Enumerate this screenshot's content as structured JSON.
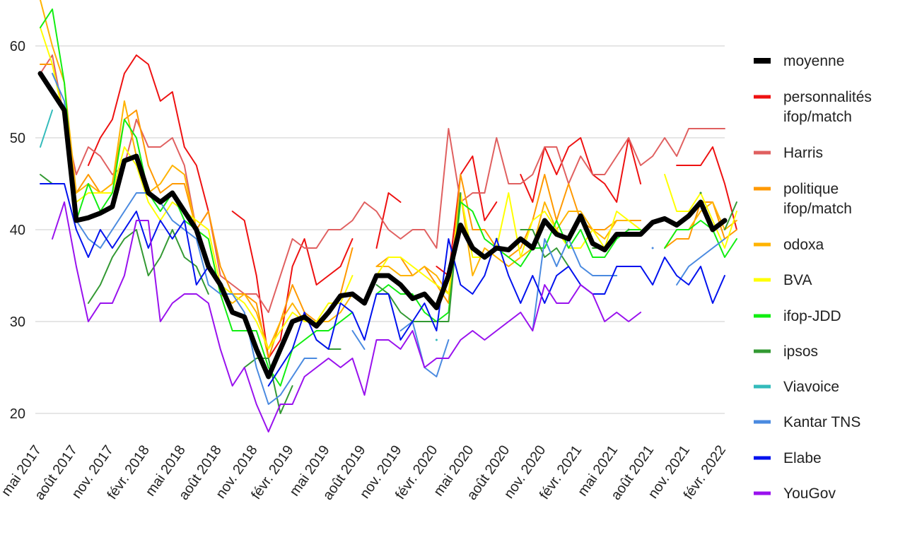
{
  "chart_data": {
    "type": "line",
    "title": "",
    "xlabel": "",
    "ylabel": "",
    "ylim": [
      17,
      65
    ],
    "yticks": [
      20,
      30,
      40,
      50,
      60
    ],
    "grid": "horizontal",
    "legend_position": "right",
    "x_tick_labels": [
      "mai 2017",
      "août 2017",
      "nov. 2017",
      "févr. 2018",
      "mai 2018",
      "août 2018",
      "nov. 2018",
      "févr. 2019",
      "mai 2019",
      "août 2019",
      "nov. 2019",
      "févr. 2020",
      "mai 2020",
      "août 2020",
      "nov. 2020",
      "févr. 2021",
      "mai 2021",
      "août 2021",
      "nov. 2021",
      "févr. 2022"
    ],
    "x_start_month": "2017-05",
    "series": [
      {
        "name": "personnalités\nifop/match",
        "color": "#ee1111",
        "width": 2,
        "values": [
          null,
          null,
          null,
          null,
          47,
          50,
          52,
          57,
          59,
          58,
          54,
          55,
          49,
          47,
          42,
          null,
          42,
          41,
          35,
          26,
          28,
          36,
          39,
          34,
          35,
          36,
          39,
          null,
          38,
          44,
          43,
          null,
          null,
          36,
          35,
          46,
          48,
          41,
          43,
          null,
          46,
          43,
          49,
          46,
          49,
          50,
          46,
          45,
          43,
          50,
          45,
          null,
          null,
          47,
          47,
          47,
          49,
          45,
          40
        ]
      },
      {
        "name": "Harris",
        "color": "#e06060",
        "width": 2,
        "values": [
          57,
          59,
          52,
          46,
          49,
          48,
          46,
          47,
          52,
          49,
          49,
          50,
          47,
          40,
          42,
          35,
          34,
          33,
          33,
          31,
          35,
          39,
          38,
          38,
          40,
          40,
          41,
          43,
          42,
          40,
          39,
          40,
          40,
          38,
          51,
          43,
          44,
          44,
          50,
          45,
          45,
          46,
          49,
          49,
          45,
          48,
          46,
          46,
          48,
          50,
          47,
          48,
          50,
          48,
          51,
          51,
          51,
          51
        ]
      },
      {
        "name": "politique\nifop/match",
        "color": "#ff9900",
        "width": 2,
        "values": [
          58,
          58,
          52,
          44,
          46,
          44,
          45,
          52,
          53,
          47,
          44,
          45,
          45,
          40,
          42,
          36,
          33,
          33,
          32,
          26,
          30,
          34,
          31,
          30,
          31,
          33,
          38,
          null,
          36,
          37,
          37,
          35,
          36,
          34,
          32,
          46,
          40,
          40,
          38,
          37,
          38,
          41,
          46,
          41,
          45,
          41,
          40,
          40,
          41,
          41,
          41,
          null,
          38,
          39,
          39,
          43,
          43,
          39,
          40
        ]
      },
      {
        "name": "odoxa",
        "color": "#ffb300",
        "width": 2,
        "values": [
          65,
          60,
          56,
          44,
          45,
          44,
          45,
          54,
          48,
          44,
          45,
          47,
          46,
          40,
          39,
          33,
          32,
          33,
          31,
          27,
          30,
          32,
          30,
          30,
          30,
          31,
          33,
          null,
          36,
          36,
          35,
          35,
          36,
          35,
          33,
          44,
          35,
          38,
          37,
          36,
          37,
          38,
          43,
          40,
          42,
          42,
          40,
          39,
          41,
          41,
          40,
          null,
          38,
          40,
          40,
          42,
          43,
          40,
          41
        ]
      },
      {
        "name": "BVA",
        "color": "#ffff00",
        "width": 2,
        "values": [
          62,
          58,
          52,
          43,
          44,
          44,
          44,
          49,
          47,
          43,
          41,
          43,
          42,
          41,
          40,
          34,
          33,
          32,
          30,
          27,
          29,
          31,
          30,
          30,
          32,
          32,
          35,
          null,
          35,
          37,
          37,
          36,
          35,
          34,
          33,
          44,
          37,
          37,
          38,
          44,
          37,
          41,
          42,
          40,
          38,
          38,
          40,
          38,
          42,
          41,
          40,
          null,
          46,
          42,
          42,
          44,
          41,
          38,
          42
        ]
      },
      {
        "name": "ifop-JDD",
        "color": "#11ee11",
        "width": 2,
        "values": [
          62,
          64,
          56,
          41,
          45,
          42,
          44,
          52,
          50,
          44,
          42,
          44,
          41,
          40,
          39,
          33,
          29,
          29,
          29,
          25,
          23,
          27,
          28,
          29,
          29,
          30,
          31,
          null,
          33,
          34,
          33,
          33,
          31,
          30,
          31,
          43,
          42,
          39,
          38,
          37,
          36,
          38,
          38,
          41,
          38,
          40,
          37,
          37,
          39,
          40,
          40,
          null,
          38,
          40,
          40,
          41,
          40,
          37,
          39
        ]
      },
      {
        "name": "ipsos",
        "color": "#339933",
        "width": 2,
        "values": [
          46,
          45,
          null,
          null,
          32,
          34,
          37,
          39,
          40,
          35,
          37,
          40,
          37,
          36,
          33,
          null,
          null,
          25,
          26,
          26,
          20,
          23,
          null,
          28,
          27,
          27,
          null,
          null,
          34,
          33,
          31,
          30,
          30,
          30,
          30,
          44,
          null,
          null,
          39,
          null,
          40,
          40,
          37,
          38,
          36,
          null,
          38,
          38,
          null,
          40,
          null,
          null,
          null,
          null,
          null,
          44,
          null,
          40,
          43
        ]
      },
      {
        "name": "Viavoice",
        "color": "#33bbbb",
        "width": 2,
        "values": [
          49,
          53,
          null,
          null,
          null,
          null,
          null,
          null,
          null,
          null,
          null,
          null,
          null,
          null,
          null,
          null,
          null,
          null,
          null,
          null,
          null,
          null,
          null,
          null,
          null,
          null,
          null,
          null,
          null,
          null,
          null,
          null,
          null,
          28,
          null,
          null,
          null,
          null,
          null,
          null,
          null,
          null,
          null,
          null,
          null,
          null,
          null,
          null,
          null,
          null,
          null,
          null,
          null,
          null,
          null,
          null,
          null,
          null,
          null
        ]
      },
      {
        "name": "Kantar TNS",
        "color": "#4a8ae0",
        "width": 2,
        "values": [
          null,
          57,
          54,
          41,
          39,
          38,
          40,
          42,
          44,
          44,
          43,
          41,
          40,
          39,
          34,
          33,
          33,
          31,
          25,
          21,
          22,
          24,
          26,
          26,
          null,
          null,
          29,
          27,
          null,
          null,
          29,
          30,
          25,
          24,
          28,
          null,
          null,
          null,
          null,
          null,
          null,
          29,
          39,
          36,
          39,
          36,
          35,
          35,
          35,
          null,
          null,
          38,
          null,
          34,
          36,
          37,
          38,
          39
        ]
      },
      {
        "name": "Elabe",
        "color": "#0011ee",
        "width": 2,
        "values": [
          45,
          45,
          45,
          40,
          37,
          40,
          38,
          40,
          42,
          38,
          41,
          39,
          41,
          34,
          36,
          null,
          null,
          null,
          null,
          23,
          25,
          27,
          31,
          28,
          27,
          32,
          31,
          28,
          33,
          33,
          28,
          30,
          32,
          29,
          39,
          34,
          33,
          35,
          39,
          35,
          32,
          35,
          32,
          35,
          36,
          34,
          33,
          33,
          36,
          36,
          36,
          34,
          37,
          35,
          34,
          36,
          32,
          35
        ]
      },
      {
        "name": "YouGov",
        "color": "#9911ee",
        "width": 2,
        "values": [
          null,
          39,
          43,
          36,
          30,
          32,
          32,
          35,
          41,
          41,
          30,
          32,
          33,
          33,
          32,
          27,
          23,
          25,
          21,
          18,
          21,
          21,
          24,
          25,
          26,
          25,
          26,
          22,
          28,
          28,
          27,
          29,
          25,
          26,
          26,
          28,
          29,
          28,
          29,
          30,
          31,
          29,
          34,
          32,
          32,
          34,
          33,
          30,
          31,
          30,
          31
        ]
      },
      {
        "name": "moyenne",
        "color": "#000000",
        "width": 7,
        "values": [
          57,
          55,
          53,
          41,
          41.3,
          41.8,
          42.5,
          47.5,
          48,
          44,
          43,
          44,
          42,
          40,
          36,
          34,
          31,
          30.5,
          27,
          24,
          27,
          30,
          30.5,
          29.5,
          31,
          32.8,
          33,
          32,
          35,
          35,
          34,
          32.5,
          33,
          31.5,
          35,
          40.5,
          38,
          37,
          38,
          37.8,
          39,
          38,
          41,
          39.5,
          39,
          41.5,
          38.5,
          37.8,
          39.5,
          39.5,
          39.5,
          40.8,
          41.2,
          40.5,
          41.5,
          43,
          40,
          41
        ]
      }
    ],
    "legend_entries": [
      "moyenne",
      "personnalités\nifop/match",
      "Harris",
      "politique\nifop/match",
      "odoxa",
      "BVA",
      "ifop-JDD",
      "ipsos",
      "Viavoice",
      "Kantar TNS",
      "Elabe",
      "YouGov"
    ]
  }
}
